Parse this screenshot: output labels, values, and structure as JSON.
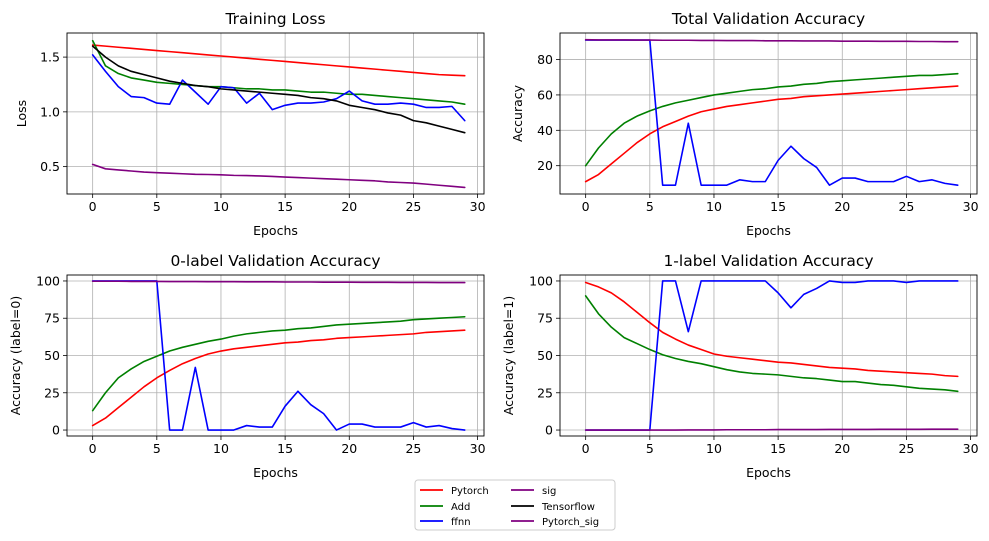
{
  "series_colors": {
    "Pytorch": "#ff0000",
    "Add": "#008000",
    "ffnn": "#0000ff",
    "sig": "#800080",
    "Tensorflow": "#000000",
    "Pytorch_sig": "#800080"
  },
  "legend": {
    "placement": "bottom-center",
    "columns": 2,
    "entries": [
      "Pytorch",
      "Add",
      "ffnn",
      "sig",
      "Tensorflow",
      "Pytorch_sig"
    ]
  },
  "chart_data": [
    {
      "type": "line",
      "title": "Training Loss",
      "xlabel": "Epochs",
      "ylabel": "Loss",
      "xlim": [
        -2,
        30.5
      ],
      "ylim": [
        0.25,
        1.72
      ],
      "xticks": [
        0,
        5,
        10,
        15,
        20,
        25,
        30
      ],
      "yticks": [
        0.5,
        1.0,
        1.5
      ],
      "ytick_labels": [
        "0.5",
        "1.0",
        "1.5"
      ],
      "grid": true,
      "x": [
        0,
        1,
        2,
        3,
        4,
        5,
        6,
        7,
        8,
        9,
        10,
        11,
        12,
        13,
        14,
        15,
        16,
        17,
        18,
        19,
        20,
        21,
        22,
        23,
        24,
        25,
        26,
        27,
        28,
        29
      ],
      "series": [
        {
          "name": "Pytorch",
          "values": [
            1.61,
            1.6,
            1.59,
            1.58,
            1.57,
            1.56,
            1.55,
            1.54,
            1.53,
            1.52,
            1.51,
            1.5,
            1.49,
            1.48,
            1.47,
            1.46,
            1.45,
            1.44,
            1.43,
            1.42,
            1.41,
            1.4,
            1.39,
            1.38,
            1.37,
            1.36,
            1.35,
            1.34,
            1.335,
            1.33
          ]
        },
        {
          "name": "Add",
          "values": [
            1.65,
            1.42,
            1.35,
            1.31,
            1.29,
            1.27,
            1.26,
            1.25,
            1.24,
            1.23,
            1.23,
            1.22,
            1.21,
            1.21,
            1.2,
            1.2,
            1.19,
            1.18,
            1.18,
            1.17,
            1.16,
            1.16,
            1.15,
            1.14,
            1.13,
            1.12,
            1.11,
            1.1,
            1.09,
            1.07
          ]
        },
        {
          "name": "ffnn",
          "values": [
            1.52,
            1.37,
            1.23,
            1.14,
            1.13,
            1.08,
            1.07,
            1.29,
            1.18,
            1.07,
            1.23,
            1.22,
            1.08,
            1.17,
            1.02,
            1.06,
            1.08,
            1.08,
            1.09,
            1.12,
            1.19,
            1.1,
            1.07,
            1.07,
            1.08,
            1.07,
            1.04,
            1.04,
            1.05,
            0.92
          ]
        },
        {
          "name": "sig",
          "values": [
            0.52,
            0.48,
            0.47,
            0.46,
            0.45,
            0.445,
            0.44,
            0.435,
            0.43,
            0.428,
            0.425,
            0.42,
            0.418,
            0.415,
            0.41,
            0.405,
            0.4,
            0.395,
            0.39,
            0.385,
            0.38,
            0.375,
            0.37,
            0.36,
            0.355,
            0.35,
            0.34,
            0.33,
            0.32,
            0.31
          ]
        },
        {
          "name": "Tensorflow",
          "values": [
            1.6,
            1.5,
            1.42,
            1.37,
            1.34,
            1.31,
            1.28,
            1.26,
            1.24,
            1.23,
            1.21,
            1.2,
            1.19,
            1.18,
            1.17,
            1.16,
            1.15,
            1.13,
            1.12,
            1.1,
            1.06,
            1.04,
            1.02,
            0.99,
            0.97,
            0.92,
            0.9,
            0.87,
            0.84,
            0.81
          ]
        }
      ]
    },
    {
      "type": "line",
      "title": "Total Validation Accuracy",
      "xlabel": "Epochs",
      "ylabel": "Accuracy",
      "xlim": [
        -2,
        30.5
      ],
      "ylim": [
        4,
        95
      ],
      "xticks": [
        0,
        5,
        10,
        15,
        20,
        25,
        30
      ],
      "yticks": [
        20,
        40,
        60,
        80
      ],
      "ytick_labels": [
        "20",
        "40",
        "60",
        "80"
      ],
      "grid": true,
      "x": [
        0,
        1,
        2,
        3,
        4,
        5,
        6,
        7,
        8,
        9,
        10,
        11,
        12,
        13,
        14,
        15,
        16,
        17,
        18,
        19,
        20,
        21,
        22,
        23,
        24,
        25,
        26,
        27,
        28,
        29
      ],
      "series": [
        {
          "name": "Pytorch",
          "values": [
            11,
            15,
            21,
            27,
            33,
            38,
            42,
            45,
            48,
            50.5,
            52,
            53.5,
            54.5,
            55.5,
            56.5,
            57.5,
            58,
            59,
            59.5,
            60,
            60.5,
            61,
            61.5,
            62,
            62.5,
            63,
            63.5,
            64,
            64.5,
            65
          ]
        },
        {
          "name": "Add",
          "values": [
            20,
            30,
            38,
            44,
            48,
            51,
            53.5,
            55.5,
            57,
            58.5,
            60,
            61,
            62,
            63,
            63.5,
            64.5,
            65,
            66,
            66.5,
            67.5,
            68,
            68.5,
            69,
            69.5,
            70,
            70.5,
            71,
            71,
            71.5,
            72
          ]
        },
        {
          "name": "ffnn",
          "values": [
            91,
            91,
            91,
            91,
            91,
            91,
            9,
            9,
            44,
            9,
            9,
            9,
            12,
            11,
            11,
            23,
            31,
            24,
            19,
            9,
            13,
            13,
            11,
            11,
            11,
            14,
            11,
            12,
            10,
            9
          ]
        },
        {
          "name": "sig",
          "values": [
            91.2,
            91.1,
            91.1,
            91.1,
            91,
            91,
            90.9,
            90.9,
            90.9,
            90.8,
            90.8,
            90.7,
            90.7,
            90.7,
            90.6,
            90.6,
            90.6,
            90.5,
            90.5,
            90.5,
            90.4,
            90.4,
            90.4,
            90.3,
            90.3,
            90.3,
            90.2,
            90.2,
            90.1,
            90.1
          ]
        }
      ]
    },
    {
      "type": "line",
      "title": "0-label Validation Accuracy",
      "xlabel": "Epochs",
      "ylabel": "Accuracy (label=0)",
      "xlim": [
        -2,
        30.5
      ],
      "ylim": [
        -4,
        104
      ],
      "xticks": [
        0,
        5,
        10,
        15,
        20,
        25,
        30
      ],
      "yticks": [
        0,
        25,
        50,
        75,
        100
      ],
      "ytick_labels": [
        "0",
        "25",
        "50",
        "75",
        "100"
      ],
      "grid": true,
      "x": [
        0,
        1,
        2,
        3,
        4,
        5,
        6,
        7,
        8,
        9,
        10,
        11,
        12,
        13,
        14,
        15,
        16,
        17,
        18,
        19,
        20,
        21,
        22,
        23,
        24,
        25,
        26,
        27,
        28,
        29
      ],
      "series": [
        {
          "name": "Pytorch",
          "values": [
            3,
            8,
            15,
            22,
            29,
            35,
            40,
            44.5,
            48,
            51,
            53,
            54.5,
            55.5,
            56.5,
            57.5,
            58.5,
            59,
            60,
            60.5,
            61.5,
            62,
            62.5,
            63,
            63.5,
            64,
            64.5,
            65.5,
            66,
            66.5,
            67
          ]
        },
        {
          "name": "Add",
          "values": [
            13,
            25,
            35,
            41,
            46,
            49.5,
            53,
            55.5,
            57.5,
            59.5,
            61,
            63,
            64.5,
            65.5,
            66.5,
            67,
            68,
            68.5,
            69.5,
            70.5,
            71,
            71.5,
            72,
            72.5,
            73,
            74,
            74.5,
            75,
            75.5,
            76
          ]
        },
        {
          "name": "ffnn",
          "values": [
            100,
            100,
            100,
            100,
            100,
            100,
            0,
            0,
            42,
            0,
            0,
            0,
            3,
            2,
            2,
            16,
            26,
            17,
            11,
            0,
            4,
            4,
            2,
            2,
            2,
            5,
            2,
            3,
            1,
            0
          ]
        },
        {
          "name": "sig",
          "values": [
            99.8,
            99.8,
            99.8,
            99.7,
            99.7,
            99.7,
            99.6,
            99.6,
            99.6,
            99.5,
            99.5,
            99.5,
            99.4,
            99.4,
            99.4,
            99.3,
            99.3,
            99.3,
            99.2,
            99.2,
            99.2,
            99.1,
            99.1,
            99.1,
            99,
            99,
            99,
            98.9,
            98.9,
            98.9
          ]
        }
      ]
    },
    {
      "type": "line",
      "title": "1-label Validation Accuracy",
      "xlabel": "Epochs",
      "ylabel": "Accuracy (label=1)",
      "xlim": [
        -2,
        30.5
      ],
      "ylim": [
        -4,
        104
      ],
      "xticks": [
        0,
        5,
        10,
        15,
        20,
        25,
        30
      ],
      "yticks": [
        0,
        25,
        50,
        75,
        100
      ],
      "ytick_labels": [
        "0",
        "25",
        "50",
        "75",
        "100"
      ],
      "grid": true,
      "x": [
        0,
        1,
        2,
        3,
        4,
        5,
        6,
        7,
        8,
        9,
        10,
        11,
        12,
        13,
        14,
        15,
        16,
        17,
        18,
        19,
        20,
        21,
        22,
        23,
        24,
        25,
        26,
        27,
        28,
        29
      ],
      "series": [
        {
          "name": "Pytorch",
          "values": [
            99,
            96,
            92,
            86,
            79,
            72,
            65.5,
            61,
            57,
            54,
            51,
            49.5,
            48.5,
            47.5,
            46.5,
            45.5,
            45,
            44,
            43,
            42,
            41.5,
            41,
            40,
            39.5,
            39,
            38.5,
            38,
            37.5,
            36.5,
            36
          ]
        },
        {
          "name": "Add",
          "values": [
            90,
            78,
            69,
            62,
            58,
            54,
            50.5,
            48,
            46,
            44.5,
            42.5,
            40.5,
            39,
            38,
            37.5,
            37,
            36,
            35,
            34.5,
            33.5,
            32.5,
            32.5,
            31.5,
            30.5,
            30,
            29,
            28,
            27.5,
            27,
            26
          ]
        },
        {
          "name": "ffnn",
          "values": [
            0,
            0,
            0,
            0,
            0,
            0,
            100,
            100,
            66,
            100,
            100,
            100,
            100,
            100,
            100,
            92,
            82,
            91,
            95,
            100,
            99,
            99,
            100,
            100,
            100,
            99,
            100,
            100,
            100,
            100
          ]
        },
        {
          "name": "sig",
          "values": [
            0,
            0,
            0,
            0,
            0,
            0,
            0,
            0,
            0.1,
            0.1,
            0.1,
            0.2,
            0.2,
            0.2,
            0.2,
            0.3,
            0.3,
            0.3,
            0.3,
            0.4,
            0.4,
            0.4,
            0.4,
            0.5,
            0.5,
            0.5,
            0.5,
            0.6,
            0.6,
            0.6
          ]
        }
      ]
    }
  ]
}
